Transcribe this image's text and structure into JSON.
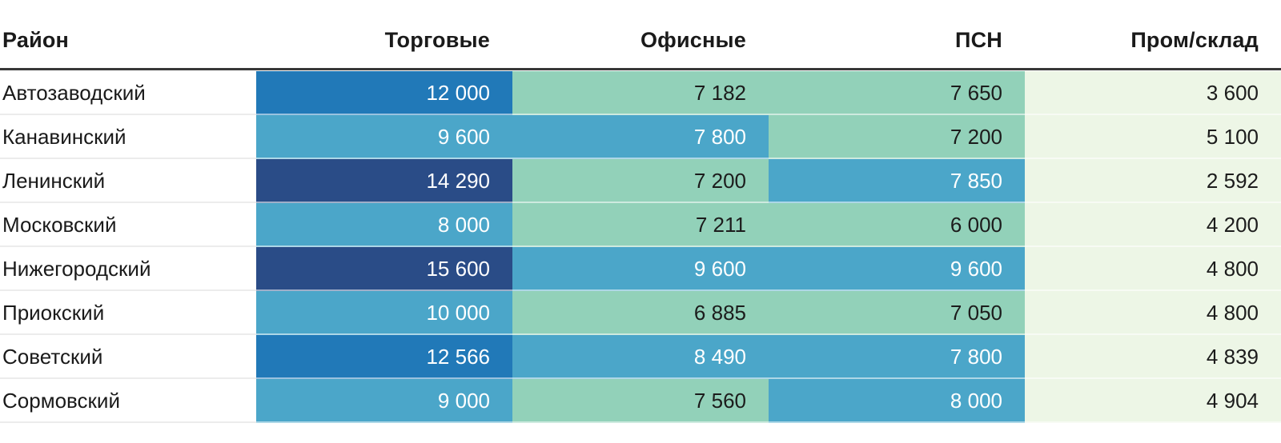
{
  "table": {
    "columns": [
      {
        "label": "Район"
      },
      {
        "label": "Торговые"
      },
      {
        "label": "Офисные"
      },
      {
        "label": "ПСН"
      },
      {
        "label": "Пром/склад"
      }
    ],
    "palette": {
      "navy": {
        "bg": "#2a4c87",
        "text": "#ffffff"
      },
      "blue": {
        "bg": "#2179b8",
        "text": "#ffffff"
      },
      "teal": {
        "bg": "#4ba6c9",
        "text": "#ffffff"
      },
      "green": {
        "bg": "#92d1b9",
        "text": "#1c1c1c"
      },
      "pale": {
        "bg": "#edf6e6",
        "text": "#1c1c1c"
      }
    },
    "rule_color": "#383838",
    "rows": [
      {
        "district": "Автозаводский",
        "cells": [
          {
            "text": "12 000",
            "tone": "blue"
          },
          {
            "text": "7 182",
            "tone": "green"
          },
          {
            "text": "7 650",
            "tone": "green"
          },
          {
            "text": "3 600",
            "tone": "pale"
          }
        ]
      },
      {
        "district": "Канавинский",
        "cells": [
          {
            "text": "9 600",
            "tone": "teal"
          },
          {
            "text": "7 800",
            "tone": "teal"
          },
          {
            "text": "7 200",
            "tone": "green"
          },
          {
            "text": "5 100",
            "tone": "pale"
          }
        ]
      },
      {
        "district": "Ленинский",
        "cells": [
          {
            "text": "14 290",
            "tone": "navy"
          },
          {
            "text": "7 200",
            "tone": "green"
          },
          {
            "text": "7 850",
            "tone": "teal"
          },
          {
            "text": "2 592",
            "tone": "pale"
          }
        ]
      },
      {
        "district": "Московский",
        "cells": [
          {
            "text": "8 000",
            "tone": "teal"
          },
          {
            "text": "7 211",
            "tone": "green"
          },
          {
            "text": "6 000",
            "tone": "green"
          },
          {
            "text": "4 200",
            "tone": "pale"
          }
        ]
      },
      {
        "district": "Нижегородский",
        "cells": [
          {
            "text": "15 600",
            "tone": "navy"
          },
          {
            "text": "9 600",
            "tone": "teal"
          },
          {
            "text": "9 600",
            "tone": "teal"
          },
          {
            "text": "4 800",
            "tone": "pale"
          }
        ]
      },
      {
        "district": "Приокский",
        "cells": [
          {
            "text": "10 000",
            "tone": "teal"
          },
          {
            "text": "6 885",
            "tone": "green"
          },
          {
            "text": "7 050",
            "tone": "green"
          },
          {
            "text": "4 800",
            "tone": "pale"
          }
        ]
      },
      {
        "district": "Советский",
        "cells": [
          {
            "text": "12 566",
            "tone": "blue"
          },
          {
            "text": "8 490",
            "tone": "teal"
          },
          {
            "text": "7 800",
            "tone": "teal"
          },
          {
            "text": "4 839",
            "tone": "pale"
          }
        ]
      },
      {
        "district": "Сормовский",
        "cells": [
          {
            "text": "9 000",
            "tone": "teal"
          },
          {
            "text": "7 560",
            "tone": "green"
          },
          {
            "text": "8 000",
            "tone": "teal"
          },
          {
            "text": "4 904",
            "tone": "pale"
          }
        ]
      }
    ]
  },
  "chart_data": {
    "type": "heatmap",
    "title": "",
    "categories": [
      "Автозаводский",
      "Канавинский",
      "Ленинский",
      "Московский",
      "Нижегородский",
      "Приокский",
      "Советский",
      "Сормовский"
    ],
    "series": [
      {
        "name": "Торговые",
        "values": [
          12000,
          9600,
          14290,
          8000,
          15600,
          10000,
          12566,
          9000
        ]
      },
      {
        "name": "Офисные",
        "values": [
          7182,
          7800,
          7200,
          7211,
          9600,
          6885,
          8490,
          7560
        ]
      },
      {
        "name": "ПСН",
        "values": [
          7650,
          7200,
          7850,
          6000,
          9600,
          7050,
          7800,
          8000
        ]
      },
      {
        "name": "Пром/склад",
        "values": [
          3600,
          5100,
          2592,
          4200,
          4800,
          4800,
          4839,
          4904
        ]
      }
    ],
    "legend_position": "none",
    "grid": false,
    "color_scale": {
      "low": "#edf6e6",
      "mid": "#92d1b9",
      "high": "#2a4c87",
      "low_value": 2592,
      "high_value": 15600
    }
  }
}
